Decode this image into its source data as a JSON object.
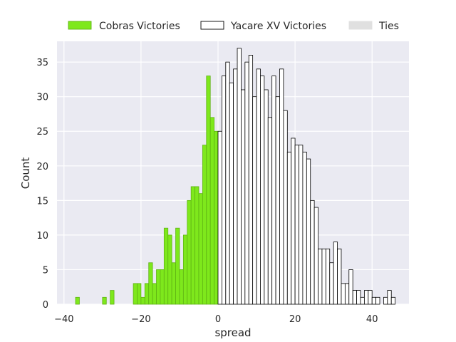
{
  "chart_data": {
    "type": "bar",
    "xlabel": "spread",
    "ylabel": "Count",
    "xlim": [
      -40,
      50
    ],
    "ylim": [
      0,
      38
    ],
    "x_ticks": [
      "−40",
      "−20",
      "0",
      "20",
      "40"
    ],
    "x_tick_values": [
      -40,
      -20,
      0,
      20,
      40
    ],
    "y_ticks": [
      "0",
      "5",
      "10",
      "15",
      "20",
      "25",
      "30",
      "35"
    ],
    "y_tick_values": [
      0,
      5,
      10,
      15,
      20,
      25,
      30,
      35
    ],
    "grid": true,
    "legend_placement": "top",
    "bin_width": 1,
    "series": [
      {
        "name": "Cobras Victories",
        "color": "#7ee81c",
        "edge": "#5fb314",
        "x": [
          -37,
          -30,
          -28,
          -22,
          -21,
          -20,
          -19,
          -18,
          -17,
          -16,
          -15,
          -14,
          -13,
          -12,
          -11,
          -10,
          -9,
          -8,
          -7,
          -6,
          -5,
          -4,
          -3,
          -2,
          -1
        ],
        "values": [
          1,
          1,
          2,
          3,
          3,
          1,
          3,
          6,
          3,
          5,
          5,
          11,
          10,
          6,
          11,
          5,
          10,
          15,
          17,
          17,
          16,
          23,
          33,
          27,
          25
        ]
      },
      {
        "name": "Yacare XV Victories",
        "color": "#ffffff",
        "edge": "#000000",
        "x": [
          0,
          1,
          2,
          3,
          4,
          5,
          6,
          7,
          8,
          9,
          10,
          11,
          12,
          13,
          14,
          15,
          16,
          17,
          18,
          19,
          20,
          21,
          22,
          23,
          24,
          25,
          26,
          27,
          28,
          29,
          30,
          31,
          32,
          33,
          34,
          35,
          36,
          37,
          38,
          39,
          40,
          41,
          42,
          43,
          44,
          45
        ],
        "values": [
          25,
          33,
          35,
          32,
          34,
          37,
          31,
          35,
          36,
          30,
          34,
          33,
          31,
          27,
          33,
          30,
          34,
          28,
          22,
          24,
          23,
          23,
          22,
          21,
          15,
          14,
          8,
          8,
          8,
          6,
          9,
          8,
          3,
          3,
          5,
          2,
          2,
          1,
          2,
          2,
          1,
          1,
          0,
          1,
          2,
          1
        ]
      },
      {
        "name": "Ties",
        "color": "#e0e0e0",
        "edge": "#e0e0e0",
        "x": [],
        "values": []
      }
    ]
  }
}
